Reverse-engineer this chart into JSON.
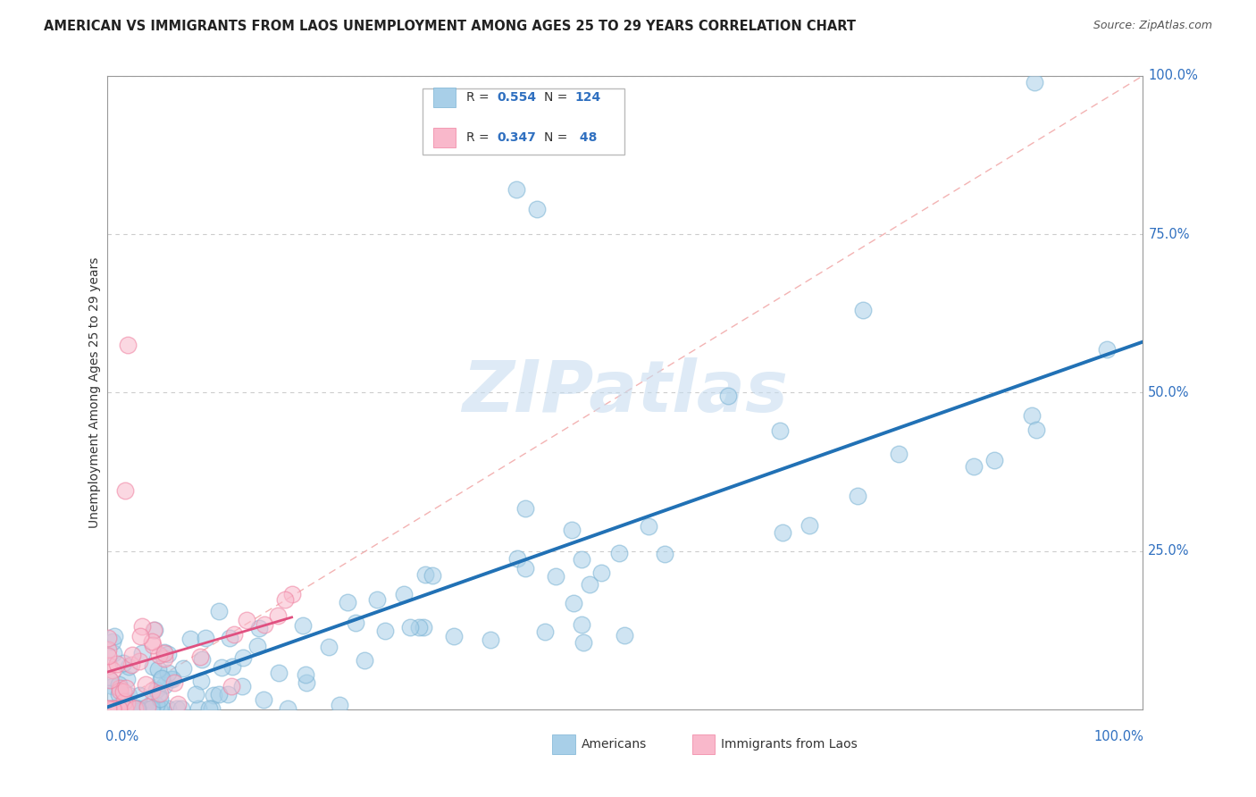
{
  "title": "AMERICAN VS IMMIGRANTS FROM LAOS UNEMPLOYMENT AMONG AGES 25 TO 29 YEARS CORRELATION CHART",
  "source": "Source: ZipAtlas.com",
  "ylabel": "Unemployment Among Ages 25 to 29 years",
  "R_americans": 0.554,
  "N_americans": 124,
  "R_laos": 0.347,
  "N_laos": 48,
  "color_americans": "#a8cfe8",
  "color_americans_edge": "#7ab3d4",
  "color_laos": "#f9b8cb",
  "color_laos_edge": "#f080a0",
  "regression_color_americans": "#2171b5",
  "regression_color_laos": "#e05080",
  "diagonal_color": "#f0a0a0",
  "background_color": "#ffffff",
  "watermark_color": "#c8ddf0",
  "ytick_labels": [
    "0.0%",
    "25.0%",
    "50.0%",
    "75.0%",
    "100.0%"
  ],
  "label_color": "#3070c0"
}
